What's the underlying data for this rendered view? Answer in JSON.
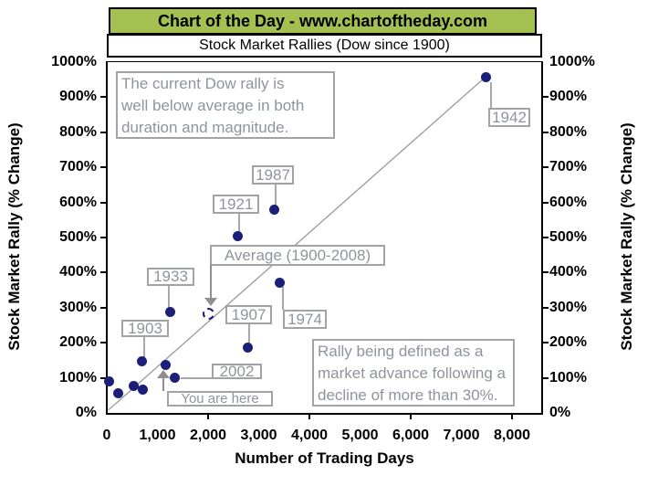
{
  "header": {
    "title": "Chart of the Day - www.chartoftheday.com",
    "subtitle": "Stock Market Rallies (Dow since 1900)"
  },
  "colors": {
    "header_green": "#A4C050",
    "point_navy": "#1B1F78",
    "annotation_gray": "#8F949C",
    "annotation_border_gray": "#A3A3A3",
    "trend_line_gray": "#999999",
    "axis_black": "#000000"
  },
  "annotations": {
    "note_top": [
      "The current Dow rally is",
      "well below average in both",
      "duration and magnitude."
    ],
    "note_bottom": [
      "Rally being defined as a",
      "market advance following a",
      "decline of more than 30%."
    ],
    "you_are_here": "You are here"
  },
  "chart_data": {
    "type": "scatter",
    "title": "Stock Market Rallies (Dow since 1900)",
    "xlabel": "Number of Trading Days",
    "ylabel": "Stock Market Rally (% Change)",
    "xlim": [
      0,
      8568
    ],
    "ylim": [
      0,
      1000
    ],
    "grid": false,
    "x_tick_labels": [
      "0",
      "1,000",
      "2,000",
      "3,000",
      "4,000",
      "5,000",
      "6,000",
      "7,000",
      "8,000"
    ],
    "y_tick_labels": [
      "0%",
      "100%",
      "200%",
      "300%",
      "400%",
      "500%",
      "600%",
      "700%",
      "800%",
      "900%",
      "1000%"
    ],
    "points": [
      {
        "label": "1942",
        "days": 7480,
        "pct": 958
      },
      {
        "label": "1987",
        "days": 3300,
        "pct": 580
      },
      {
        "label": "1921",
        "days": 2580,
        "pct": 505
      },
      {
        "label": "1974",
        "days": 3420,
        "pct": 372
      },
      {
        "label": "1933",
        "days": 1260,
        "pct": 287
      },
      {
        "label": "1907",
        "days": 2790,
        "pct": 187
      },
      {
        "label": "1903",
        "days": 700,
        "pct": 148
      },
      {
        "label": "2002",
        "days": 1350,
        "pct": 99
      },
      {
        "label": "",
        "days": 1170,
        "pct": 138
      },
      {
        "label": "",
        "days": 50,
        "pct": 90
      },
      {
        "label": "",
        "days": 530,
        "pct": 78
      },
      {
        "label": "",
        "days": 710,
        "pct": 67
      },
      {
        "label": "",
        "days": 220,
        "pct": 55
      }
    ],
    "average_point": {
      "label": "Average (1900-2008)",
      "days": 2000,
      "pct": 282
    },
    "trendline": {
      "from": {
        "days": 30,
        "pct": 8
      },
      "to": {
        "days": 7480,
        "pct": 958
      }
    }
  }
}
